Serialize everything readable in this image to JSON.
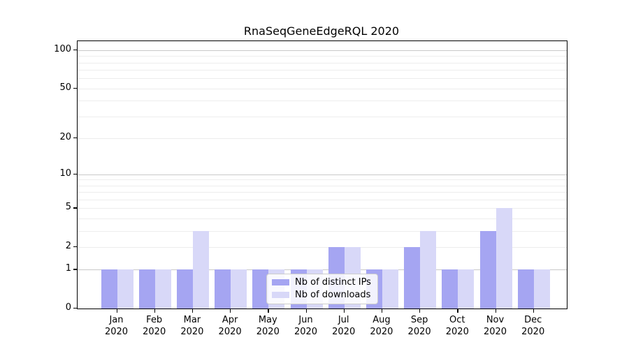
{
  "title": "RnaSeqGeneEdgeRQL 2020",
  "chart_data": {
    "type": "bar",
    "title": "RnaSeqGeneEdgeRQL 2020",
    "categories": [
      "Jan",
      "Feb",
      "Mar",
      "Apr",
      "May",
      "Jun",
      "Jul",
      "Aug",
      "Sep",
      "Oct",
      "Nov",
      "Dec"
    ],
    "year_label": "2020",
    "series": [
      {
        "name": "Nb of distinct IPs",
        "color": "#a5a5f2",
        "values": [
          1,
          1,
          1,
          1,
          1,
          1,
          2,
          1,
          2,
          1,
          3,
          1
        ]
      },
      {
        "name": "Nb of downloads",
        "color": "#d8d8f8",
        "values": [
          1,
          1,
          3,
          1,
          1,
          1,
          2,
          1,
          3,
          1,
          5,
          1
        ]
      }
    ],
    "yscale": "log1p",
    "yticks": [
      100,
      50,
      20,
      10,
      5,
      2,
      1,
      0
    ],
    "ylim": [
      0,
      120
    ],
    "grid": "horizontal-log-major-minor",
    "legend_position": "lower-center-inside"
  },
  "colors": {
    "bar_distinct_ips": "#a5a5f2",
    "bar_downloads": "#d8d8f8",
    "grid_major": "#c9c9c9",
    "grid_minor": "#ededed",
    "spine": "#000000",
    "legend_border": "#cccccc"
  }
}
